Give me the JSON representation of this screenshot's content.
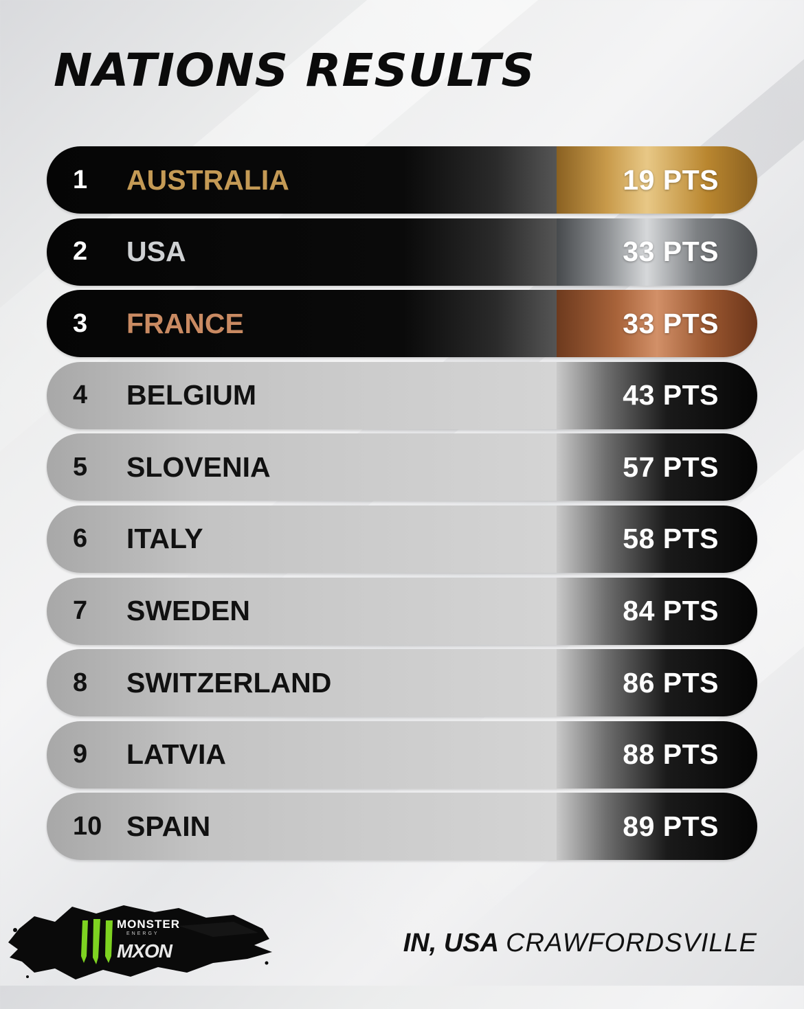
{
  "title": "NATIONS RESULTS",
  "results": [
    {
      "rank": "1",
      "country": "AUSTRALIA",
      "points": "19 PTS",
      "tier": "gold"
    },
    {
      "rank": "2",
      "country": "USA",
      "points": "33 PTS",
      "tier": "silver"
    },
    {
      "rank": "3",
      "country": "FRANCE",
      "points": "33 PTS",
      "tier": "bronze"
    },
    {
      "rank": "4",
      "country": "BELGIUM",
      "points": "43 PTS",
      "tier": "standard"
    },
    {
      "rank": "5",
      "country": "SLOVENIA",
      "points": "57 PTS",
      "tier": "standard"
    },
    {
      "rank": "6",
      "country": "ITALY",
      "points": "58 PTS",
      "tier": "standard"
    },
    {
      "rank": "7",
      "country": "SWEDEN",
      "points": "84 PTS",
      "tier": "standard"
    },
    {
      "rank": "8",
      "country": "SWITZERLAND",
      "points": "86 PTS",
      "tier": "standard"
    },
    {
      "rank": "9",
      "country": "LATVIA",
      "points": "88 PTS",
      "tier": "standard"
    },
    {
      "rank": "10",
      "country": "SPAIN",
      "points": "89 PTS",
      "tier": "standard"
    }
  ],
  "brand": {
    "word_monster": "MONSTER",
    "word_energy": "ENERGY",
    "word_mxon": "MXON",
    "icon": "monster-claw-icon"
  },
  "location": {
    "state": "IN, USA",
    "city": "CRAWFORDSVILLE"
  },
  "colors": {
    "gold": "#c49a55",
    "silver": "#cfd1d3",
    "bronze": "#c98a62",
    "monster_green": "#7ed321"
  }
}
